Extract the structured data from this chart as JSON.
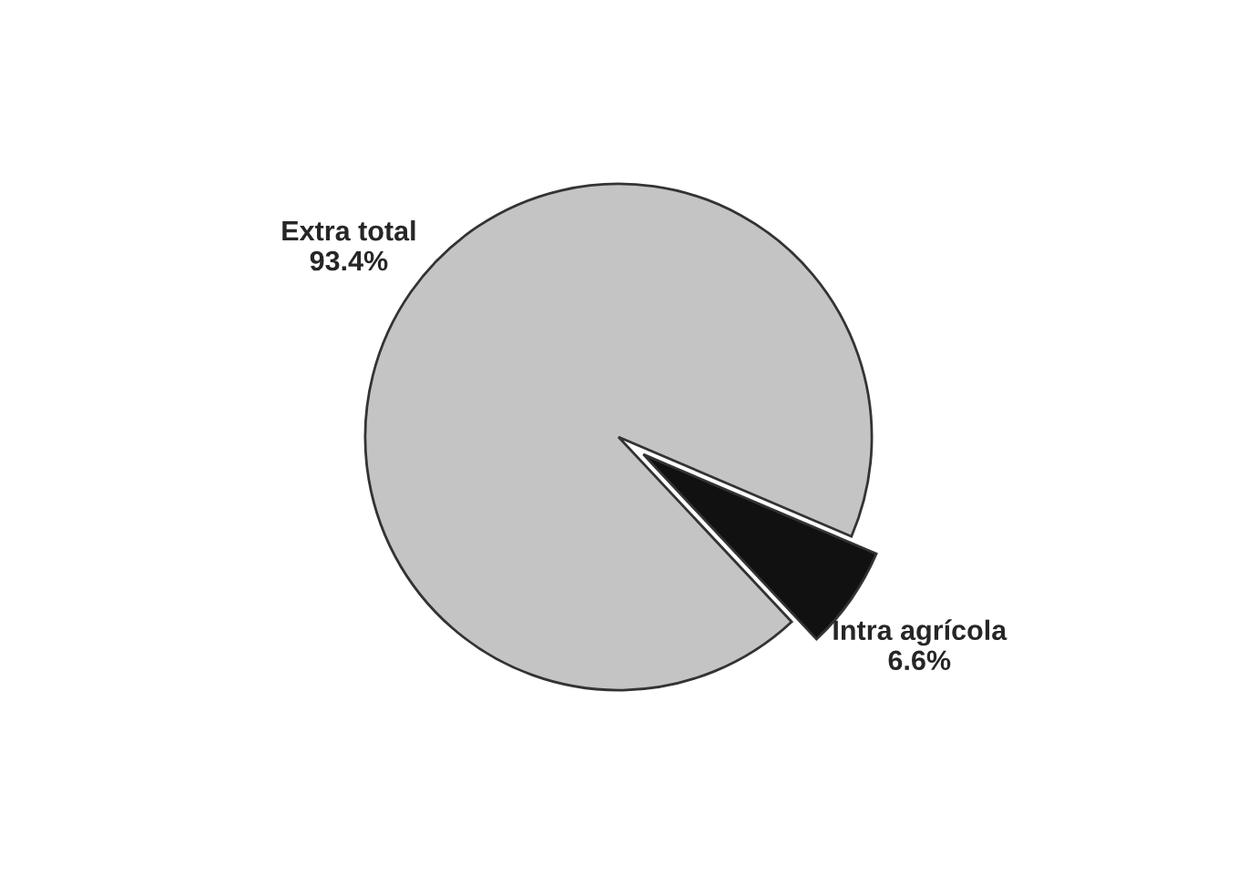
{
  "chart_data": {
    "type": "pie",
    "categories": [
      "Extra total",
      "Intra agrícola"
    ],
    "values": [
      93.4,
      6.6
    ],
    "value_labels": [
      "93.4%",
      "6.6%"
    ],
    "colors": [
      "#c4c4c4",
      "#111111"
    ],
    "legend": false
  }
}
